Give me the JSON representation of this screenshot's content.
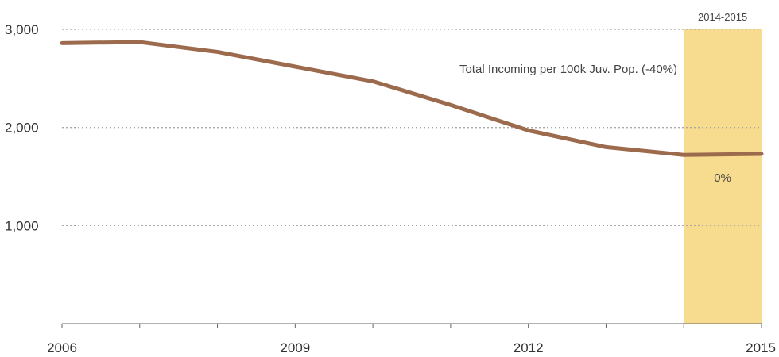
{
  "chart_data": {
    "type": "line",
    "title": "",
    "xlabel": "",
    "ylabel": "",
    "x": [
      2006,
      2007,
      2008,
      2009,
      2010,
      2011,
      2012,
      2013,
      2014,
      2015
    ],
    "series": [
      {
        "name": "Total Incoming per 100k Juv. Pop. (-40%)",
        "values": [
          2860,
          2870,
          2770,
          2620,
          2470,
          2230,
          1970,
          1800,
          1720,
          1730
        ],
        "color": "#9c6b4e"
      }
    ],
    "xlim": [
      2006,
      2015
    ],
    "ylim": [
      0,
      3000
    ],
    "y_ticks": [
      1000,
      2000,
      3000
    ],
    "y_tick_labels": [
      "1,000",
      "2,000",
      "3,000"
    ],
    "x_ticks": [
      2006,
      2007,
      2008,
      2009,
      2010,
      2011,
      2012,
      2013,
      2014,
      2015
    ],
    "x_tick_labels": [
      "2006",
      "",
      "",
      "2009",
      "",
      "",
      "2012",
      "",
      "",
      "2015"
    ],
    "grid": "horizontal dotted",
    "highlight": {
      "x_range": [
        2014,
        2015
      ],
      "label": "2014-2015",
      "annotation": "0%",
      "color": "#f7dc8f"
    },
    "series_annotation": "Total Incoming per 100k Juv. Pop. (-40%)"
  }
}
